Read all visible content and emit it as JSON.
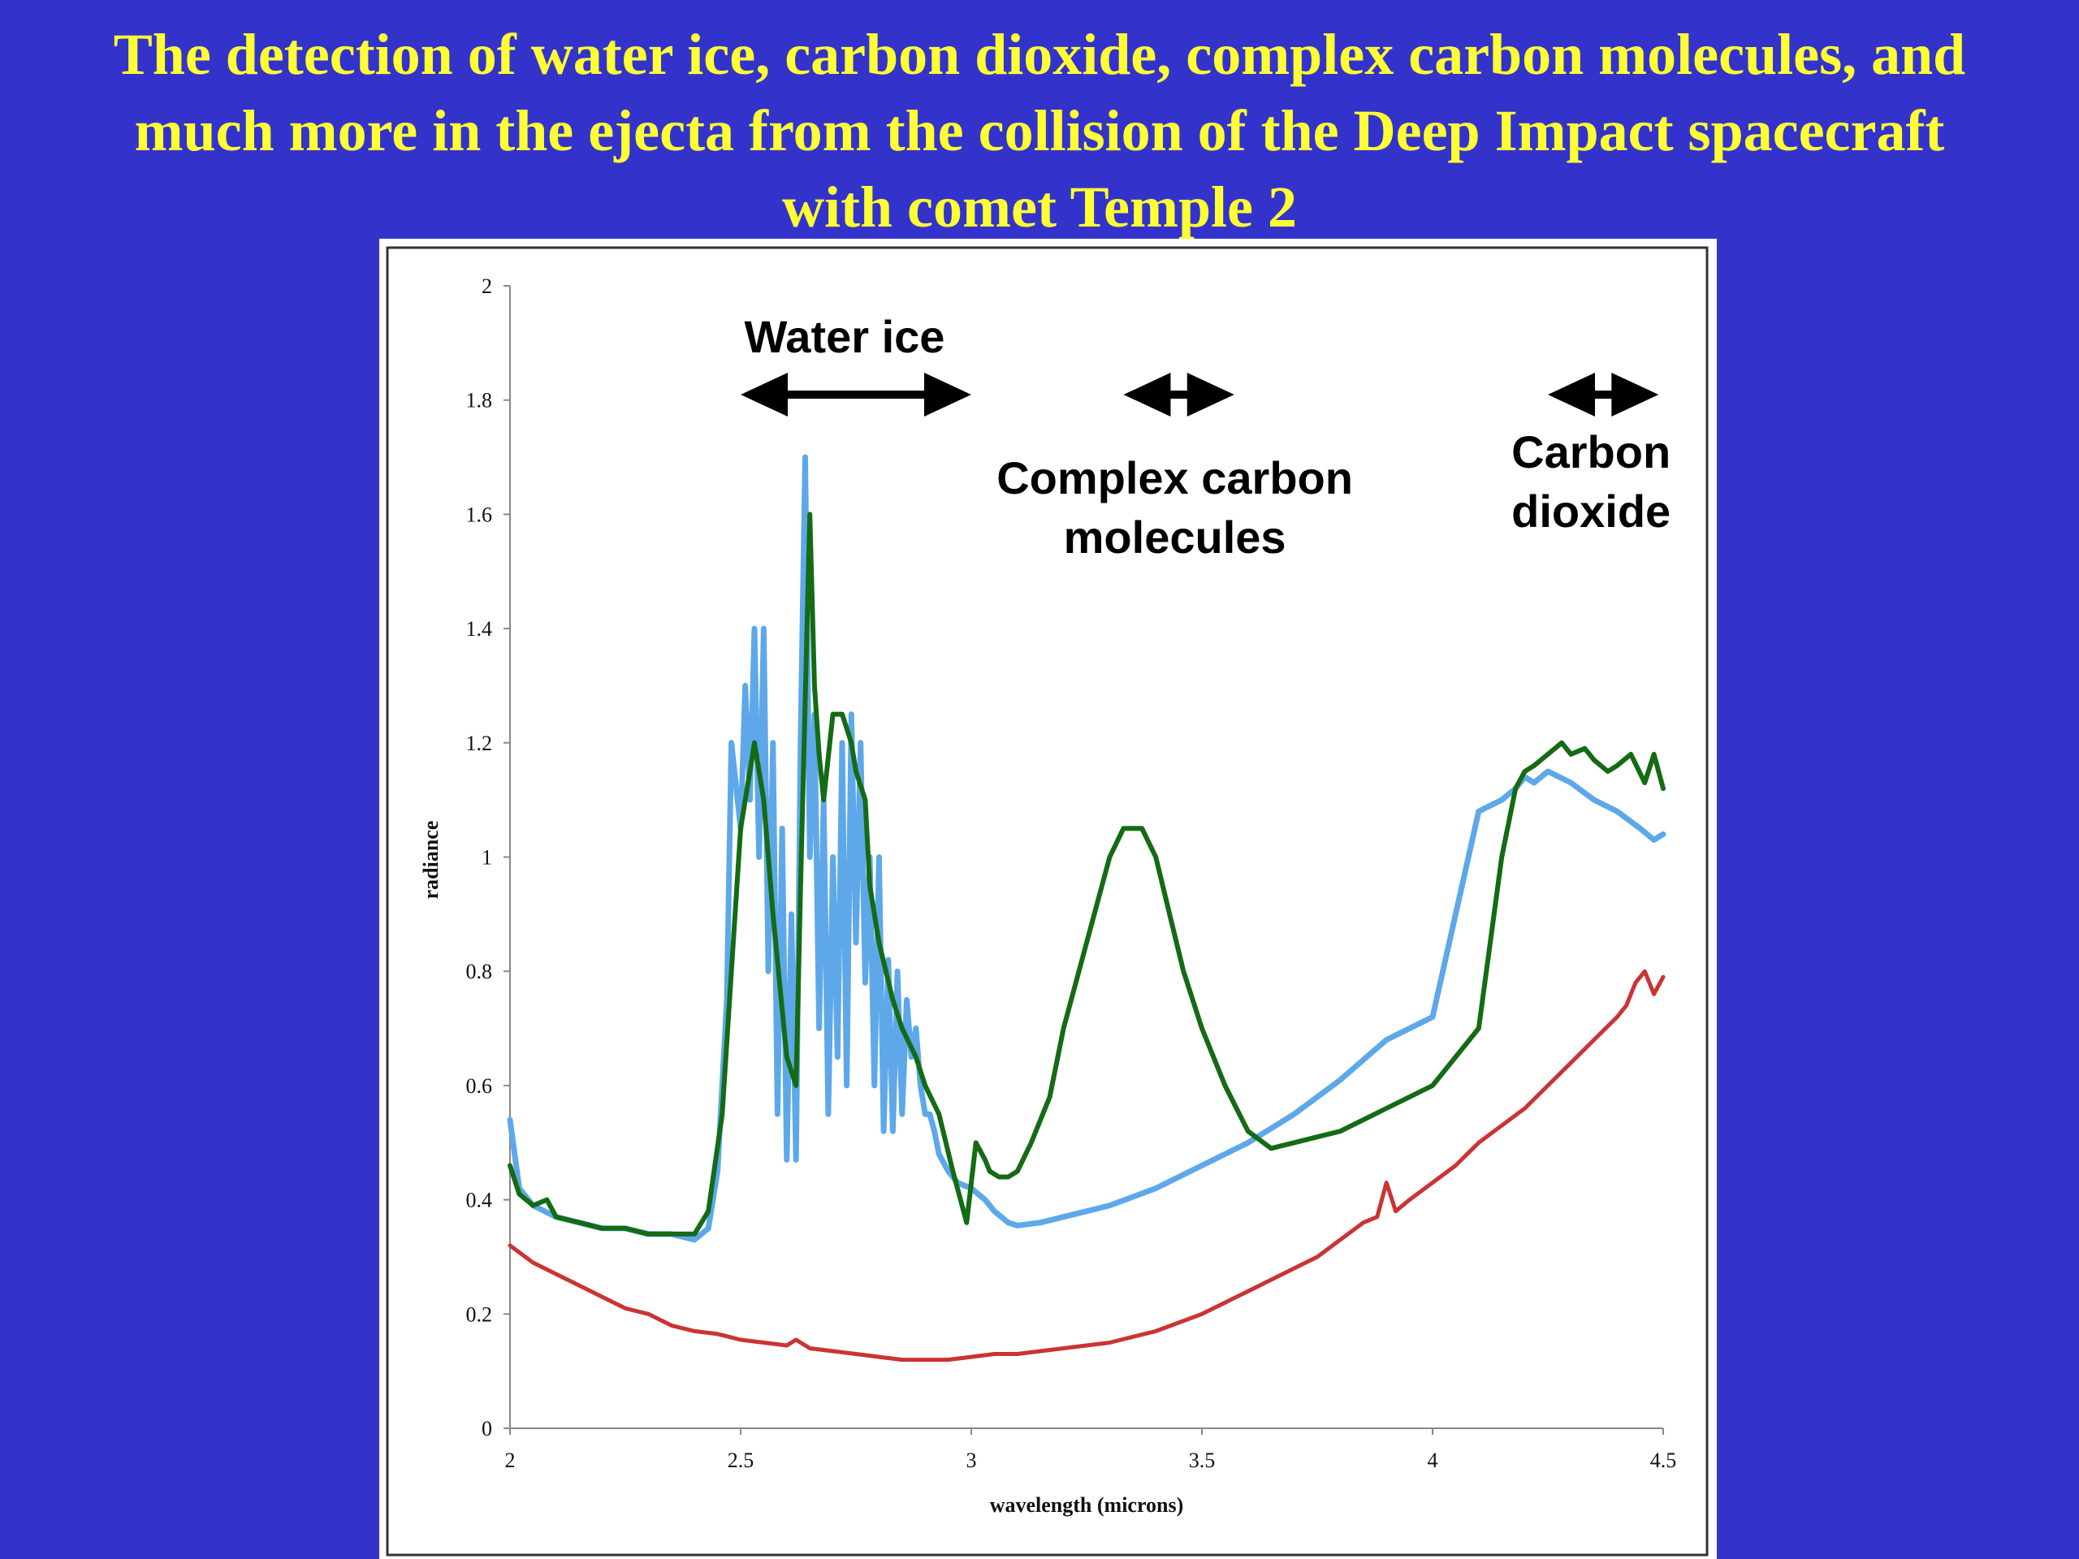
{
  "title_lines": [
    "The detection of water ice, carbon dioxide, complex carbon molecules, and",
    "much more in the ejecta from the collision of the Deep Impact spacecraft",
    "with comet Temple 2"
  ],
  "colors": {
    "background": "#3333cc",
    "title": "#ffff33",
    "panel": "#ffffff"
  },
  "chart_data": {
    "type": "line",
    "xlabel": "wavelength (microns)",
    "ylabel": "radiance",
    "xlim": [
      2,
      4.5
    ],
    "ylim": [
      0,
      2
    ],
    "xticks": [
      "2",
      "2.5",
      "3",
      "3.5",
      "4",
      "4.5"
    ],
    "yticks": [
      "0",
      "0.2",
      "0.4",
      "0.6",
      "0.8",
      "1",
      "1.2",
      "1.4",
      "1.6",
      "1.8",
      "2"
    ],
    "grid": false,
    "series": [
      {
        "color": "#5ea8ea",
        "x": [
          2.0,
          2.02,
          2.05,
          2.1,
          2.15,
          2.2,
          2.25,
          2.3,
          2.35,
          2.4,
          2.43,
          2.45,
          2.47,
          2.48,
          2.5,
          2.51,
          2.52,
          2.53,
          2.54,
          2.55,
          2.56,
          2.57,
          2.58,
          2.59,
          2.6,
          2.61,
          2.62,
          2.63,
          2.64,
          2.65,
          2.66,
          2.67,
          2.68,
          2.69,
          2.7,
          2.71,
          2.72,
          2.73,
          2.74,
          2.75,
          2.76,
          2.77,
          2.78,
          2.79,
          2.8,
          2.81,
          2.82,
          2.83,
          2.84,
          2.85,
          2.86,
          2.87,
          2.88,
          2.89,
          2.9,
          2.91,
          2.92,
          2.93,
          2.95,
          2.97,
          3.0,
          3.03,
          3.05,
          3.08,
          3.1,
          3.15,
          3.2,
          3.25,
          3.3,
          3.4,
          3.5,
          3.6,
          3.7,
          3.8,
          3.9,
          4.0,
          4.05,
          4.1,
          4.15,
          4.18,
          4.2,
          4.22,
          4.25,
          4.3,
          4.35,
          4.4,
          4.45,
          4.48,
          4.5
        ],
        "y": [
          0.54,
          0.42,
          0.39,
          0.37,
          0.36,
          0.35,
          0.35,
          0.34,
          0.34,
          0.33,
          0.35,
          0.45,
          0.75,
          1.2,
          1.05,
          1.3,
          1.1,
          1.4,
          1.0,
          1.4,
          0.8,
          1.2,
          0.55,
          1.05,
          0.47,
          0.9,
          0.47,
          1.2,
          1.7,
          1.0,
          1.25,
          0.7,
          1.1,
          0.55,
          1.0,
          0.65,
          1.2,
          0.6,
          1.25,
          0.85,
          1.2,
          0.78,
          1.0,
          0.6,
          1.0,
          0.52,
          0.82,
          0.52,
          0.8,
          0.55,
          0.75,
          0.65,
          0.7,
          0.6,
          0.55,
          0.55,
          0.52,
          0.48,
          0.45,
          0.43,
          0.42,
          0.4,
          0.38,
          0.36,
          0.355,
          0.36,
          0.37,
          0.38,
          0.39,
          0.42,
          0.46,
          0.5,
          0.55,
          0.61,
          0.68,
          0.72,
          0.9,
          1.08,
          1.1,
          1.12,
          1.14,
          1.13,
          1.15,
          1.13,
          1.1,
          1.08,
          1.05,
          1.03,
          1.04
        ]
      },
      {
        "color": "#146b14",
        "x": [
          2.0,
          2.02,
          2.05,
          2.08,
          2.1,
          2.15,
          2.2,
          2.25,
          2.3,
          2.35,
          2.4,
          2.43,
          2.46,
          2.48,
          2.5,
          2.52,
          2.53,
          2.55,
          2.57,
          2.6,
          2.62,
          2.63,
          2.65,
          2.66,
          2.67,
          2.68,
          2.7,
          2.72,
          2.74,
          2.75,
          2.77,
          2.78,
          2.8,
          2.83,
          2.85,
          2.88,
          2.9,
          2.93,
          2.96,
          2.99,
          3.01,
          3.03,
          3.04,
          3.06,
          3.08,
          3.1,
          3.13,
          3.17,
          3.2,
          3.25,
          3.3,
          3.33,
          3.37,
          3.4,
          3.43,
          3.46,
          3.5,
          3.55,
          3.6,
          3.65,
          3.7,
          3.75,
          3.8,
          3.85,
          3.9,
          4.0,
          4.1,
          4.15,
          4.18,
          4.2,
          4.22,
          4.25,
          4.28,
          4.3,
          4.33,
          4.35,
          4.38,
          4.4,
          4.43,
          4.46,
          4.48,
          4.5
        ],
        "y": [
          0.46,
          0.41,
          0.39,
          0.4,
          0.37,
          0.36,
          0.35,
          0.35,
          0.34,
          0.34,
          0.34,
          0.38,
          0.55,
          0.8,
          1.05,
          1.15,
          1.2,
          1.1,
          0.9,
          0.65,
          0.6,
          0.95,
          1.6,
          1.3,
          1.18,
          1.1,
          1.25,
          1.25,
          1.2,
          1.15,
          1.1,
          0.95,
          0.85,
          0.75,
          0.7,
          0.65,
          0.6,
          0.55,
          0.45,
          0.36,
          0.5,
          0.47,
          0.45,
          0.44,
          0.44,
          0.45,
          0.5,
          0.58,
          0.7,
          0.85,
          1.0,
          1.05,
          1.05,
          1.0,
          0.9,
          0.8,
          0.7,
          0.6,
          0.52,
          0.49,
          0.5,
          0.51,
          0.52,
          0.54,
          0.56,
          0.6,
          0.7,
          1.0,
          1.12,
          1.15,
          1.16,
          1.18,
          1.2,
          1.18,
          1.19,
          1.17,
          1.15,
          1.16,
          1.18,
          1.13,
          1.18,
          1.12
        ]
      },
      {
        "color": "#cc3333",
        "x": [
          2.0,
          2.05,
          2.1,
          2.15,
          2.2,
          2.25,
          2.3,
          2.35,
          2.4,
          2.45,
          2.5,
          2.55,
          2.6,
          2.62,
          2.65,
          2.7,
          2.75,
          2.8,
          2.85,
          2.9,
          2.95,
          3.0,
          3.05,
          3.1,
          3.15,
          3.2,
          3.25,
          3.3,
          3.35,
          3.4,
          3.45,
          3.5,
          3.55,
          3.6,
          3.65,
          3.7,
          3.75,
          3.8,
          3.85,
          3.88,
          3.9,
          3.92,
          3.95,
          4.0,
          4.05,
          4.1,
          4.15,
          4.2,
          4.25,
          4.3,
          4.35,
          4.4,
          4.42,
          4.44,
          4.46,
          4.48,
          4.5
        ],
        "y": [
          0.32,
          0.29,
          0.27,
          0.25,
          0.23,
          0.21,
          0.2,
          0.18,
          0.17,
          0.165,
          0.155,
          0.15,
          0.145,
          0.155,
          0.14,
          0.135,
          0.13,
          0.125,
          0.12,
          0.12,
          0.12,
          0.125,
          0.13,
          0.13,
          0.135,
          0.14,
          0.145,
          0.15,
          0.16,
          0.17,
          0.185,
          0.2,
          0.22,
          0.24,
          0.26,
          0.28,
          0.3,
          0.33,
          0.36,
          0.37,
          0.43,
          0.38,
          0.4,
          0.43,
          0.46,
          0.5,
          0.53,
          0.56,
          0.6,
          0.64,
          0.68,
          0.72,
          0.74,
          0.78,
          0.8,
          0.76,
          0.79
        ]
      }
    ],
    "annotations": [
      {
        "text_lines": [
          "Water ice"
        ],
        "range": [
          2.5,
          3.0
        ]
      },
      {
        "text_lines": [
          "Complex carbon",
          "molecules"
        ],
        "range": [
          3.33,
          3.57
        ]
      },
      {
        "text_lines": [
          "Carbon",
          "dioxide"
        ],
        "range": [
          4.25,
          4.49
        ]
      }
    ]
  }
}
